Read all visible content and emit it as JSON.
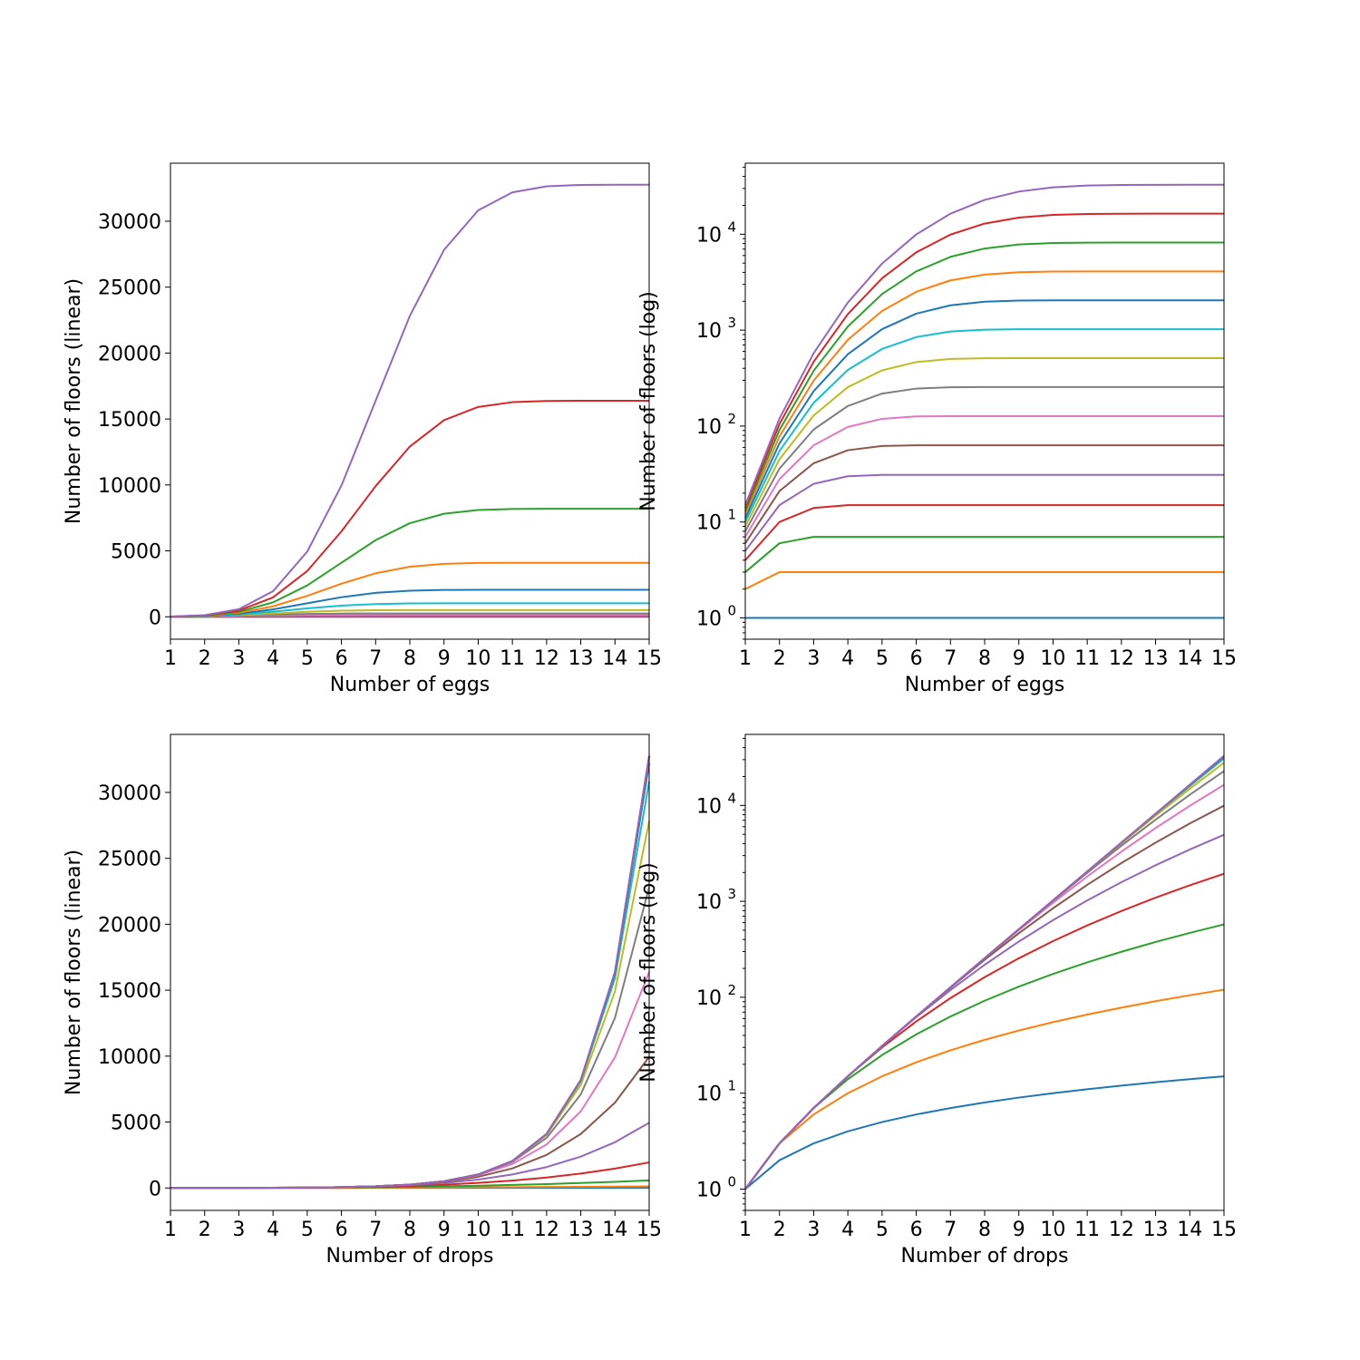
{
  "chart_data": [
    {
      "type": "line",
      "xlabel": "Number of eggs",
      "ylabel": "Number of floors (linear)",
      "scale": "linear",
      "xlim": [
        1,
        15
      ],
      "ylim": [
        -1700,
        34400
      ],
      "x": [
        1,
        2,
        3,
        4,
        5,
        6,
        7,
        8,
        9,
        10,
        11,
        12,
        13,
        14,
        15
      ],
      "xticks": [
        "1",
        "2",
        "3",
        "4",
        "5",
        "6",
        "7",
        "8",
        "9",
        "10",
        "11",
        "12",
        "13",
        "14",
        "15"
      ],
      "yticks": [
        {
          "value": 0,
          "label": "0"
        },
        {
          "value": 5000,
          "label": "5000"
        },
        {
          "value": 10000,
          "label": "10000"
        },
        {
          "value": 15000,
          "label": "15000"
        },
        {
          "value": 20000,
          "label": "20000"
        },
        {
          "value": 25000,
          "label": "25000"
        },
        {
          "value": 30000,
          "label": "30000"
        }
      ],
      "series_source": "eggs",
      "legend": "none",
      "grid": false
    },
    {
      "type": "line",
      "xlabel": "Number of eggs",
      "ylabel": "Number of floors (log)",
      "scale": "log",
      "xlim": [
        1,
        15
      ],
      "ylim": [
        0.6,
        55000
      ],
      "x": [
        1,
        2,
        3,
        4,
        5,
        6,
        7,
        8,
        9,
        10,
        11,
        12,
        13,
        14,
        15
      ],
      "xticks": [
        "1",
        "2",
        "3",
        "4",
        "5",
        "6",
        "7",
        "8",
        "9",
        "10",
        "11",
        "12",
        "13",
        "14",
        "15"
      ],
      "yticks": [
        {
          "value": 1,
          "base": "10",
          "exp": "0"
        },
        {
          "value": 10,
          "base": "10",
          "exp": "1"
        },
        {
          "value": 100,
          "base": "10",
          "exp": "2"
        },
        {
          "value": 1000,
          "base": "10",
          "exp": "3"
        },
        {
          "value": 10000,
          "base": "10",
          "exp": "4"
        }
      ],
      "series_source": "eggs",
      "legend": "none",
      "grid": false
    },
    {
      "type": "line",
      "xlabel": "Number of drops",
      "ylabel": "Number of floors (linear)",
      "scale": "linear",
      "xlim": [
        1,
        15
      ],
      "ylim": [
        -1700,
        34400
      ],
      "x": [
        1,
        2,
        3,
        4,
        5,
        6,
        7,
        8,
        9,
        10,
        11,
        12,
        13,
        14,
        15
      ],
      "xticks": [
        "1",
        "2",
        "3",
        "4",
        "5",
        "6",
        "7",
        "8",
        "9",
        "10",
        "11",
        "12",
        "13",
        "14",
        "15"
      ],
      "yticks": [
        {
          "value": 0,
          "label": "0"
        },
        {
          "value": 5000,
          "label": "5000"
        },
        {
          "value": 10000,
          "label": "10000"
        },
        {
          "value": 15000,
          "label": "15000"
        },
        {
          "value": 20000,
          "label": "20000"
        },
        {
          "value": 25000,
          "label": "25000"
        },
        {
          "value": 30000,
          "label": "30000"
        }
      ],
      "series_source": "drops",
      "legend": "none",
      "grid": false
    },
    {
      "type": "line",
      "xlabel": "Number of drops",
      "ylabel": "Number of floors (log)",
      "scale": "log",
      "xlim": [
        1,
        15
      ],
      "ylim": [
        0.6,
        55000
      ],
      "x": [
        1,
        2,
        3,
        4,
        5,
        6,
        7,
        8,
        9,
        10,
        11,
        12,
        13,
        14,
        15
      ],
      "xticks": [
        "1",
        "2",
        "3",
        "4",
        "5",
        "6",
        "7",
        "8",
        "9",
        "10",
        "11",
        "12",
        "13",
        "14",
        "15"
      ],
      "yticks": [
        {
          "value": 1,
          "base": "10",
          "exp": "0"
        },
        {
          "value": 10,
          "base": "10",
          "exp": "1"
        },
        {
          "value": 100,
          "base": "10",
          "exp": "2"
        },
        {
          "value": 1000,
          "base": "10",
          "exp": "3"
        },
        {
          "value": 10000,
          "base": "10",
          "exp": "4"
        }
      ],
      "series_source": "drops",
      "legend": "none",
      "grid": false
    }
  ],
  "series_by_eggs": [
    [
      1,
      1,
      1,
      1,
      1,
      1,
      1,
      1,
      1,
      1,
      1,
      1,
      1,
      1,
      1
    ],
    [
      2,
      3,
      3,
      3,
      3,
      3,
      3,
      3,
      3,
      3,
      3,
      3,
      3,
      3,
      3
    ],
    [
      3,
      6,
      7,
      7,
      7,
      7,
      7,
      7,
      7,
      7,
      7,
      7,
      7,
      7,
      7
    ],
    [
      4,
      10,
      14,
      15,
      15,
      15,
      15,
      15,
      15,
      15,
      15,
      15,
      15,
      15,
      15
    ],
    [
      5,
      15,
      25,
      30,
      31,
      31,
      31,
      31,
      31,
      31,
      31,
      31,
      31,
      31,
      31
    ],
    [
      6,
      21,
      41,
      56,
      62,
      63,
      63,
      63,
      63,
      63,
      63,
      63,
      63,
      63,
      63
    ],
    [
      7,
      28,
      63,
      98,
      119,
      126,
      127,
      127,
      127,
      127,
      127,
      127,
      127,
      127,
      127
    ],
    [
      8,
      36,
      92,
      162,
      218,
      246,
      254,
      255,
      255,
      255,
      255,
      255,
      255,
      255,
      255
    ],
    [
      9,
      45,
      129,
      255,
      381,
      465,
      501,
      510,
      511,
      511,
      511,
      511,
      511,
      511,
      511
    ],
    [
      10,
      55,
      175,
      385,
      637,
      847,
      967,
      1012,
      1022,
      1023,
      1023,
      1023,
      1023,
      1023,
      1023
    ],
    [
      11,
      66,
      231,
      561,
      1023,
      1485,
      1815,
      1980,
      2035,
      2046,
      2047,
      2047,
      2047,
      2047,
      2047
    ],
    [
      12,
      78,
      298,
      793,
      1585,
      2509,
      3301,
      3796,
      4016,
      4082,
      4094,
      4095,
      4095,
      4095,
      4095
    ],
    [
      13,
      91,
      377,
      1092,
      2379,
      4095,
      5811,
      7098,
      7813,
      8099,
      8177,
      8190,
      8191,
      8191,
      8191
    ],
    [
      14,
      105,
      469,
      1470,
      3472,
      6475,
      9907,
      12910,
      14912,
      15913,
      16277,
      16368,
      16382,
      16383,
      16383
    ],
    [
      15,
      120,
      575,
      1940,
      4943,
      9948,
      16383,
      22818,
      27823,
      30826,
      32191,
      32646,
      32751,
      32766,
      32767
    ]
  ],
  "series_by_drops": [
    [
      1,
      2,
      3,
      4,
      5,
      6,
      7,
      8,
      9,
      10,
      11,
      12,
      13,
      14,
      15
    ],
    [
      1,
      3,
      6,
      10,
      15,
      21,
      28,
      36,
      45,
      55,
      66,
      78,
      91,
      105,
      120
    ],
    [
      1,
      3,
      7,
      14,
      25,
      41,
      63,
      92,
      129,
      175,
      231,
      298,
      377,
      469,
      575
    ],
    [
      1,
      3,
      7,
      15,
      30,
      56,
      98,
      162,
      255,
      385,
      561,
      793,
      1092,
      1470,
      1940
    ],
    [
      1,
      3,
      7,
      15,
      31,
      62,
      119,
      218,
      381,
      637,
      1023,
      1585,
      2379,
      3472,
      4943
    ],
    [
      1,
      3,
      7,
      15,
      31,
      63,
      126,
      246,
      465,
      847,
      1485,
      2509,
      4095,
      6475,
      9948
    ],
    [
      1,
      3,
      7,
      15,
      31,
      63,
      127,
      254,
      501,
      967,
      1815,
      3301,
      5811,
      9907,
      16383
    ],
    [
      1,
      3,
      7,
      15,
      31,
      63,
      127,
      255,
      510,
      1012,
      1980,
      3796,
      7098,
      12910,
      22818
    ],
    [
      1,
      3,
      7,
      15,
      31,
      63,
      127,
      255,
      511,
      1022,
      2035,
      4016,
      7813,
      14912,
      27823
    ],
    [
      1,
      3,
      7,
      15,
      31,
      63,
      127,
      255,
      511,
      1023,
      2046,
      4082,
      8099,
      15913,
      30826
    ],
    [
      1,
      3,
      7,
      15,
      31,
      63,
      127,
      255,
      511,
      1023,
      2047,
      4094,
      8177,
      16277,
      32191
    ],
    [
      1,
      3,
      7,
      15,
      31,
      63,
      127,
      255,
      511,
      1023,
      2047,
      4095,
      8190,
      16368,
      32646
    ],
    [
      1,
      3,
      7,
      15,
      31,
      63,
      127,
      255,
      511,
      1023,
      2047,
      4095,
      8191,
      16382,
      32751
    ],
    [
      1,
      3,
      7,
      15,
      31,
      63,
      127,
      255,
      511,
      1023,
      2047,
      4095,
      8191,
      16383,
      32766
    ],
    [
      1,
      3,
      7,
      15,
      31,
      63,
      127,
      255,
      511,
      1023,
      2047,
      4095,
      8191,
      16383,
      32767
    ]
  ],
  "colors": [
    "#1f77b4",
    "#ff7f0e",
    "#2ca02c",
    "#d62728",
    "#9467bd",
    "#8c564b",
    "#e377c2",
    "#7f7f7f",
    "#bcbd22",
    "#17becf"
  ]
}
